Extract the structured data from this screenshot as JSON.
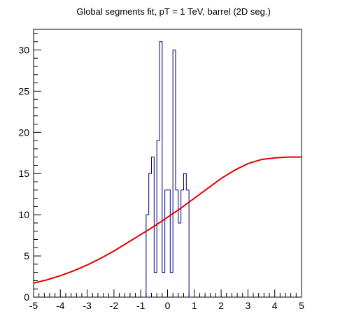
{
  "chart_data": {
    "type": "histogram",
    "title": "Global segments fit, pT = 1 TeV, barrel (2D seg.)",
    "xlabel": "",
    "ylabel": "",
    "xlim": [
      -5,
      5
    ],
    "ylim": [
      0,
      32.5
    ],
    "x_ticks": [
      "-5",
      "-4",
      "-3",
      "-2",
      "-1",
      "0",
      "1",
      "2",
      "3",
      "4",
      "5"
    ],
    "y_ticks": [
      "0",
      "5",
      "10",
      "15",
      "20",
      "25",
      "30"
    ],
    "y_tick_values": [
      0,
      5,
      10,
      15,
      20,
      25,
      30
    ],
    "grid": false,
    "legend": "none",
    "histogram": {
      "name": "",
      "color": "#00007f",
      "bin_edges": [
        -0.9,
        -0.8,
        -0.7,
        -0.6,
        -0.5,
        -0.4,
        -0.3,
        -0.2,
        -0.1,
        0.0,
        0.1,
        0.2,
        0.3,
        0.4,
        0.5,
        0.6,
        0.7,
        0.8,
        0.9
      ],
      "counts": [
        0,
        10,
        15,
        17,
        3,
        19,
        31,
        3,
        13,
        13,
        3,
        30,
        13,
        9,
        13,
        15,
        13,
        0
      ]
    },
    "fit_curve": {
      "name": "",
      "color": "#e00000",
      "x": [
        -5,
        -4.5,
        -4,
        -3.5,
        -3,
        -2.5,
        -2,
        -1.5,
        -1,
        -0.5,
        0,
        0.5,
        1,
        1.5,
        2,
        2.5,
        3,
        3.5,
        4,
        4.5,
        5
      ],
      "y": [
        1.7,
        2.1,
        2.6,
        3.2,
        3.9,
        4.7,
        5.6,
        6.6,
        7.6,
        8.6,
        9.7,
        10.8,
        12.0,
        13.2,
        14.4,
        15.4,
        16.2,
        16.7,
        16.9,
        17.0,
        17.0
      ]
    }
  }
}
